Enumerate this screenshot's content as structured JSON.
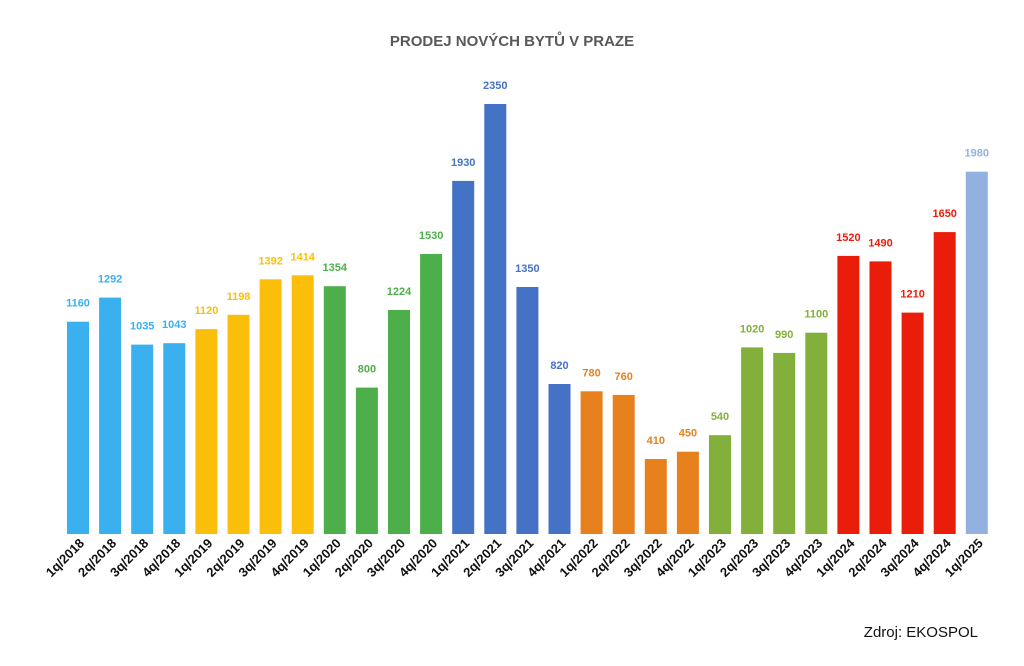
{
  "chart_data": {
    "type": "bar",
    "title": "PRODEJ NOVÝCH BYTŮ V PRAZE",
    "source": "Zdroj: EKOSPOL",
    "categories": [
      "1q/2018",
      "2q/2018",
      "3q/2018",
      "4q/2018",
      "1q/2019",
      "2q/2019",
      "3q/2019",
      "4q/2019",
      "1q/2020",
      "2q/2020",
      "3q/2020",
      "4q/2020",
      "1q/2021",
      "2q/2021",
      "3q/2021",
      "4q/2021",
      "1q/2022",
      "2q/2022",
      "3q/2022",
      "4q/2022",
      "1q/2023",
      "2q/2023",
      "3q/2023",
      "4q/2023",
      "1q/2024",
      "2q/2024",
      "3q/2024",
      "4q/2024",
      "1q/2025"
    ],
    "values": [
      1160,
      1292,
      1035,
      1043,
      1120,
      1198,
      1392,
      1414,
      1354,
      800,
      1224,
      1530,
      1930,
      2350,
      1350,
      820,
      780,
      760,
      410,
      450,
      540,
      1020,
      990,
      1100,
      1520,
      1490,
      1210,
      1650,
      1980
    ],
    "colors": [
      "#3bb0ef",
      "#3bb0ef",
      "#3bb0ef",
      "#3bb0ef",
      "#fbbf0b",
      "#fbbf0b",
      "#fbbf0b",
      "#fbbf0b",
      "#4daf4a",
      "#4daf4a",
      "#4daf4a",
      "#4daf4a",
      "#4472c4",
      "#4472c4",
      "#4472c4",
      "#4472c4",
      "#e6811e",
      "#e6811e",
      "#e6811e",
      "#e6811e",
      "#82b03a",
      "#82b03a",
      "#82b03a",
      "#82b03a",
      "#ea1c0a",
      "#ea1c0a",
      "#ea1c0a",
      "#ea1c0a",
      "#93b1e0"
    ],
    "ylim": [
      0,
      2350
    ],
    "grid": false,
    "legend": "none"
  }
}
